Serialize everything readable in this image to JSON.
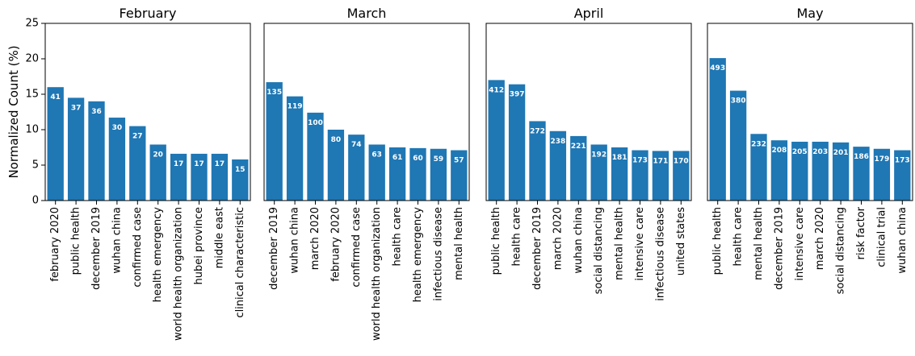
{
  "chart_data": {
    "type": "bar",
    "ylabel": "Normalized Count (%)",
    "ylim": [
      0,
      25
    ],
    "yticks": [
      0,
      5,
      10,
      15,
      20,
      25
    ],
    "bar_color": "#1f77b4",
    "panels": [
      {
        "title": "February",
        "categories": [
          "february 2020",
          "public health",
          "december 2019",
          "wuhan china",
          "confirmed case",
          "health emergency",
          "world health organization",
          "hubei province",
          "middle east",
          "clinical characteristic"
        ],
        "values": [
          16.0,
          14.5,
          14.0,
          11.7,
          10.5,
          7.9,
          6.6,
          6.6,
          6.6,
          5.8
        ],
        "labels": [
          "41",
          "37",
          "36",
          "30",
          "27",
          "20",
          "17",
          "17",
          "17",
          "15"
        ]
      },
      {
        "title": "March",
        "categories": [
          "december 2019",
          "wuhan china",
          "march 2020",
          "february 2020",
          "confirmed case",
          "world health organization",
          "health care",
          "health emergency",
          "infectious disease",
          "mental health"
        ],
        "values": [
          16.7,
          14.7,
          12.4,
          10.0,
          9.3,
          7.9,
          7.5,
          7.4,
          7.3,
          7.1
        ],
        "labels": [
          "135",
          "119",
          "100",
          "80",
          "74",
          "63",
          "61",
          "60",
          "59",
          "57"
        ]
      },
      {
        "title": "April",
        "categories": [
          "public health",
          "health care",
          "december 2019",
          "march 2020",
          "wuhan china",
          "social distancing",
          "mental health",
          "intensive care",
          "infectious disease",
          "united states"
        ],
        "values": [
          17.0,
          16.4,
          11.2,
          9.8,
          9.1,
          7.9,
          7.5,
          7.1,
          7.0,
          7.0
        ],
        "labels": [
          "412",
          "397",
          "272",
          "238",
          "221",
          "192",
          "181",
          "173",
          "171",
          "170"
        ]
      },
      {
        "title": "May",
        "categories": [
          "public health",
          "health care",
          "mental health",
          "december 2019",
          "intensive care",
          "march 2020",
          "social distancing",
          "risk factor",
          "clinical trial",
          "wuhan china"
        ],
        "values": [
          20.1,
          15.5,
          9.4,
          8.5,
          8.3,
          8.3,
          8.2,
          7.6,
          7.3,
          7.1
        ],
        "labels": [
          "493",
          "380",
          "232",
          "208",
          "205",
          "203",
          "201",
          "186",
          "179",
          "173"
        ]
      }
    ]
  }
}
